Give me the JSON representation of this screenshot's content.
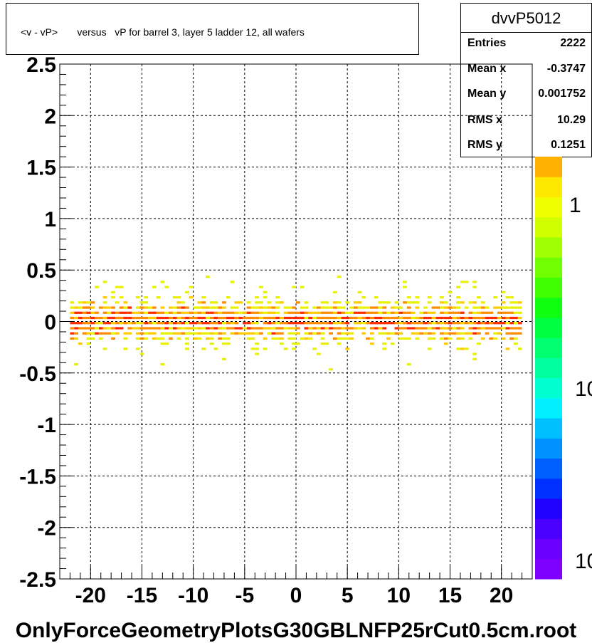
{
  "title_box": {
    "text": "<v - vP>       versus   vP for barrel 3, layer 5 ladder 12, all wafers"
  },
  "stats": {
    "name": "dvvP5012",
    "rows": [
      {
        "label": "Entries",
        "value": "2222"
      },
      {
        "label": "Mean x",
        "value": "-0.3747"
      },
      {
        "label": "Mean y",
        "value": "0.001752"
      },
      {
        "label": "RMS x",
        "value": "10.29"
      },
      {
        "label": "RMS y",
        "value": "0.1251"
      }
    ]
  },
  "x_axis_title": "OnlyForceGeometryPlotsG30GBLNFP25rCut0.5cm.root",
  "palette_labels": [
    "1",
    "10",
    "10"
  ],
  "colors": {
    "palette": [
      "#7f00ff",
      "#6a00ff",
      "#4a00ff",
      "#2000ff",
      "#0030ff",
      "#0060ff",
      "#0090ff",
      "#00bfff",
      "#00f0ff",
      "#00ffd0",
      "#00ff9f",
      "#00ff70",
      "#00ff40",
      "#10ff10",
      "#40ff00",
      "#70ff00",
      "#a0ff00",
      "#d0ff00",
      "#f0ff00",
      "#ffe800",
      "#ffb000"
    ],
    "low": "#e8f200",
    "mid": "#ffcc00",
    "high": "#ff8c00",
    "peak": "#ff2a00"
  },
  "chart_data": {
    "type": "heatmap",
    "title": "<v - vP>       versus   vP for barrel 3, layer 5 ladder 12, all wafers",
    "xlabel": "OnlyForceGeometryPlotsG30GBLNFP25rCut0.5cm.root",
    "ylabel": "",
    "xlim": [
      -23,
      23
    ],
    "ylim": [
      -2.5,
      2.5
    ],
    "x_ticks": [
      -20,
      -15,
      -10,
      -5,
      0,
      5,
      10,
      15,
      20
    ],
    "y_ticks": [
      -2.5,
      -2,
      -1.5,
      -1,
      -0.5,
      0,
      0.5,
      1,
      1.5,
      2,
      2.5
    ],
    "x_tick_labels": [
      "-20",
      "-15",
      "-10",
      "-5",
      "0",
      "5",
      "10",
      "15",
      "20"
    ],
    "y_tick_labels": [
      "-2.5",
      "-2",
      "-1.5",
      "-1",
      "-0.5",
      "0",
      "0.5",
      "1",
      "1.5",
      "2",
      "2.5"
    ],
    "grid": true,
    "band": {
      "x_range": [
        -22,
        22
      ],
      "y_center": 0.0,
      "y_core_halfwidth": 0.12,
      "y_tail_halfwidth": 0.48
    },
    "entries": 2222,
    "mean_x": -0.3747,
    "mean_y": 0.001752,
    "rms_x": 10.29,
    "rms_y": 0.1251
  }
}
